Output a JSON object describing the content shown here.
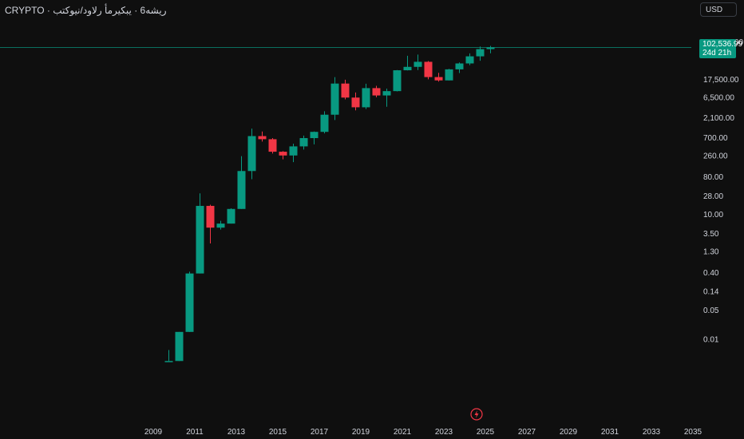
{
  "header": {
    "title": "CRYPTO · ريشه6 · يبكيرمأ رلاود/نيوكتب"
  },
  "toolbar": {
    "currency_label": "USD"
  },
  "last_price": {
    "value": "102,536.99",
    "countdown": "24d 21h"
  },
  "chart_data": {
    "type": "candlestick",
    "title": "",
    "y_scale": "log",
    "y_ticks": [
      "140,000.00",
      "17,500.00",
      "6,500.00",
      "2,100.00",
      "700.00",
      "260.00",
      "80.00",
      "28.00",
      "10.00",
      "3.50",
      "1.30",
      "0.40",
      "0.14",
      "0.05",
      "0.01"
    ],
    "y_tick_values": [
      140000,
      17500,
      6500,
      2100,
      700,
      260,
      80,
      28,
      10,
      3.5,
      1.3,
      0.4,
      0.14,
      0.05,
      0.01
    ],
    "x_ticks": [
      "2009",
      "2011",
      "2013",
      "2015",
      "2017",
      "2019",
      "2021",
      "2023",
      "2025",
      "2027",
      "2029",
      "2031",
      "2033",
      "2035"
    ],
    "x_range": [
      2009,
      2035
    ],
    "ylim": [
      0.0025,
      600000
    ],
    "candle_period": "6 months",
    "candles": [
      {
        "t": 2009.75,
        "o": 0.003,
        "h": 0.0055,
        "l": 0.003,
        "c": 0.003
      },
      {
        "t": 2010.25,
        "o": 0.003,
        "h": 0.015,
        "l": 0.003,
        "c": 0.015
      },
      {
        "t": 2010.75,
        "o": 0.015,
        "h": 0.42,
        "l": 0.015,
        "c": 0.38
      },
      {
        "t": 2011.25,
        "o": 0.38,
        "h": 32,
        "l": 0.38,
        "c": 16
      },
      {
        "t": 2011.75,
        "o": 16,
        "h": 17,
        "l": 2.0,
        "c": 4.8
      },
      {
        "t": 2012.25,
        "o": 4.8,
        "h": 7,
        "l": 4.3,
        "c": 6.0
      },
      {
        "t": 2012.75,
        "o": 6.0,
        "h": 14,
        "l": 6.0,
        "c": 13.5
      },
      {
        "t": 2013.25,
        "o": 13.5,
        "h": 250,
        "l": 13.5,
        "c": 110
      },
      {
        "t": 2013.75,
        "o": 110,
        "h": 1150,
        "l": 70,
        "c": 760
      },
      {
        "t": 2014.25,
        "o": 760,
        "h": 980,
        "l": 560,
        "c": 640
      },
      {
        "t": 2014.75,
        "o": 640,
        "h": 680,
        "l": 290,
        "c": 320
      },
      {
        "t": 2015.25,
        "o": 320,
        "h": 330,
        "l": 210,
        "c": 260
      },
      {
        "t": 2015.75,
        "o": 260,
        "h": 500,
        "l": 180,
        "c": 430
      },
      {
        "t": 2016.25,
        "o": 430,
        "h": 780,
        "l": 360,
        "c": 680
      },
      {
        "t": 2016.75,
        "o": 680,
        "h": 980,
        "l": 480,
        "c": 960
      },
      {
        "t": 2017.25,
        "o": 960,
        "h": 3000,
        "l": 880,
        "c": 2480
      },
      {
        "t": 2017.75,
        "o": 2480,
        "h": 19800,
        "l": 1850,
        "c": 13900
      },
      {
        "t": 2018.25,
        "o": 13900,
        "h": 17200,
        "l": 5800,
        "c": 6400
      },
      {
        "t": 2018.75,
        "o": 6400,
        "h": 8500,
        "l": 3150,
        "c": 3740
      },
      {
        "t": 2019.25,
        "o": 3740,
        "h": 13800,
        "l": 3400,
        "c": 10800
      },
      {
        "t": 2019.75,
        "o": 10800,
        "h": 12300,
        "l": 6500,
        "c": 7200
      },
      {
        "t": 2020.25,
        "o": 7200,
        "h": 10500,
        "l": 3850,
        "c": 9150
      },
      {
        "t": 2020.75,
        "o": 9150,
        "h": 29300,
        "l": 9000,
        "c": 29000
      },
      {
        "t": 2021.25,
        "o": 29000,
        "h": 64800,
        "l": 28800,
        "c": 35000
      },
      {
        "t": 2021.75,
        "o": 35000,
        "h": 69000,
        "l": 29300,
        "c": 46300
      },
      {
        "t": 2022.25,
        "o": 46300,
        "h": 48200,
        "l": 17600,
        "c": 19900
      },
      {
        "t": 2022.75,
        "o": 19900,
        "h": 25200,
        "l": 15500,
        "c": 16550
      },
      {
        "t": 2023.25,
        "o": 16550,
        "h": 31400,
        "l": 16500,
        "c": 30500
      },
      {
        "t": 2023.75,
        "o": 30500,
        "h": 44700,
        "l": 24900,
        "c": 42300
      },
      {
        "t": 2024.25,
        "o": 42300,
        "h": 73800,
        "l": 38500,
        "c": 62700
      },
      {
        "t": 2024.75,
        "o": 62700,
        "h": 108300,
        "l": 49000,
        "c": 93400
      },
      {
        "t": 2025.25,
        "o": 93400,
        "h": 111900,
        "l": 74400,
        "c": 102537
      }
    ],
    "last_price": 102536.99,
    "colors": {
      "up": "#089981",
      "down": "#f23645",
      "background": "#0f0f0f",
      "price_line": "#089981"
    }
  }
}
